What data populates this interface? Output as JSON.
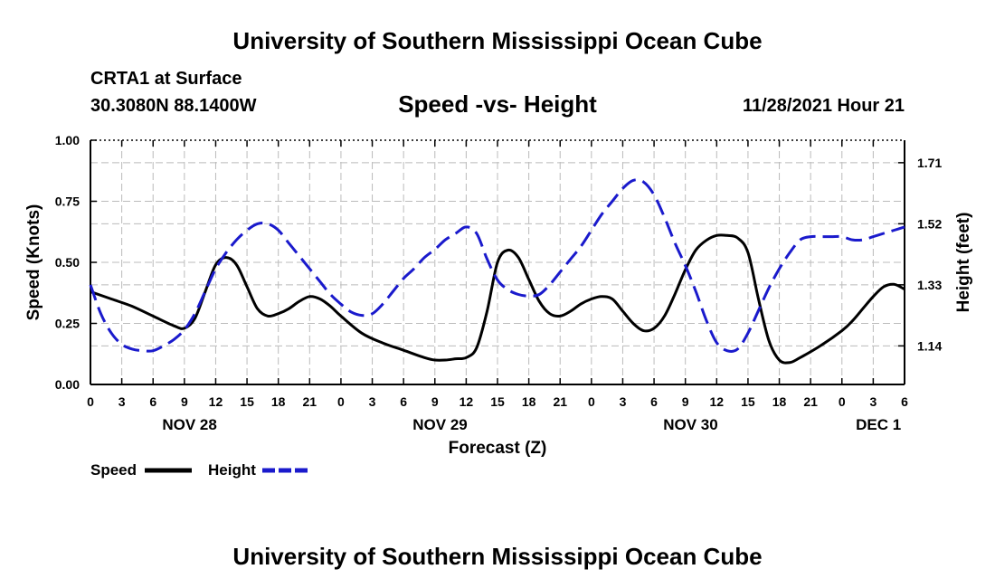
{
  "header": {
    "title": "University of Southern Mississippi Ocean Cube",
    "station": "CRTA1 at Surface",
    "coords": "30.3080N  88.1400W",
    "chart_title": "Speed -vs- Height",
    "datetime": "11/28/2021 Hour 21"
  },
  "footer": {
    "title": "University of Southern Mississippi Ocean Cube"
  },
  "colors": {
    "speed": "#000000",
    "height": "#1a1acc",
    "grid": "#bbbbbb"
  },
  "chart_data": {
    "type": "line",
    "title": "Speed -vs- Height",
    "xlabel": "Forecast (Z)",
    "ylabel": "Speed (Knots)",
    "y2label": "Height (feet)",
    "x_unit": "hours since NOV 28 00Z",
    "xlim": [
      0,
      78
    ],
    "ylim": [
      0,
      1
    ],
    "y2lim": [
      1.02,
      1.78
    ],
    "x_ticks": [
      0,
      3,
      6,
      9,
      12,
      15,
      18,
      21,
      24,
      27,
      30,
      33,
      36,
      39,
      42,
      45,
      48,
      51,
      54,
      57,
      60,
      63,
      66,
      69,
      72,
      75,
      78
    ],
    "x_tick_labels": [
      "0",
      "3",
      "6",
      "9",
      "12",
      "15",
      "18",
      "21",
      "0",
      "3",
      "6",
      "9",
      "12",
      "15",
      "18",
      "21",
      "0",
      "3",
      "6",
      "9",
      "12",
      "15",
      "18",
      "21",
      "0",
      "3",
      "6"
    ],
    "date_labels": [
      {
        "x": 9.5,
        "label": "NOV 28"
      },
      {
        "x": 33.5,
        "label": "NOV 29"
      },
      {
        "x": 57.5,
        "label": "NOV 30"
      },
      {
        "x": 75.5,
        "label": "DEC 1"
      }
    ],
    "y_ticks": [
      0,
      0.25,
      0.5,
      0.75,
      1.0
    ],
    "y_tick_labels": [
      "0.00",
      "0.25",
      "0.50",
      "0.75",
      "1.00"
    ],
    "y2_ticks": [
      1.14,
      1.33,
      1.52,
      1.71
    ],
    "y2_tick_labels": [
      "1.14",
      "1.33",
      "1.52",
      "1.71"
    ],
    "legend": [
      {
        "name": "Speed",
        "style": "solid"
      },
      {
        "name": "Height",
        "style": "dashed"
      }
    ],
    "series": [
      {
        "name": "Speed",
        "axis": "left",
        "x": [
          0,
          2,
          4,
          6,
          8,
          9,
          10,
          11,
          12,
          13,
          14,
          15,
          16,
          17,
          18,
          19,
          20,
          21,
          22,
          23,
          24,
          26,
          28,
          30,
          32,
          33,
          34,
          35,
          36,
          37,
          38,
          39,
          40,
          41,
          42,
          43,
          44,
          45,
          46,
          47,
          48,
          49,
          50,
          51,
          52,
          53,
          54,
          55,
          56,
          57,
          58,
          59,
          60,
          61,
          62,
          63,
          64,
          65,
          66,
          67,
          68,
          70,
          72,
          73,
          74,
          75,
          76,
          77,
          78
        ],
        "values": [
          0.38,
          0.35,
          0.32,
          0.28,
          0.24,
          0.23,
          0.27,
          0.38,
          0.49,
          0.52,
          0.49,
          0.4,
          0.31,
          0.28,
          0.29,
          0.31,
          0.34,
          0.36,
          0.35,
          0.32,
          0.28,
          0.21,
          0.17,
          0.14,
          0.11,
          0.1,
          0.1,
          0.105,
          0.11,
          0.15,
          0.3,
          0.5,
          0.55,
          0.52,
          0.43,
          0.34,
          0.29,
          0.28,
          0.3,
          0.33,
          0.35,
          0.36,
          0.35,
          0.3,
          0.25,
          0.22,
          0.23,
          0.28,
          0.37,
          0.47,
          0.55,
          0.59,
          0.61,
          0.61,
          0.6,
          0.54,
          0.35,
          0.18,
          0.1,
          0.09,
          0.11,
          0.16,
          0.22,
          0.26,
          0.31,
          0.36,
          0.4,
          0.41,
          0.39
        ]
      },
      {
        "name": "Height",
        "axis": "right",
        "x": [
          0,
          1,
          2,
          3,
          4,
          5,
          6,
          7,
          8,
          9,
          10,
          11,
          12,
          13,
          14,
          15,
          16,
          17,
          18,
          19,
          20,
          21,
          22,
          23,
          24,
          25,
          26,
          27,
          28,
          29,
          30,
          31,
          32,
          33,
          34,
          35,
          36,
          37,
          38,
          39,
          40,
          41,
          42,
          43,
          44,
          45,
          46,
          47,
          48,
          49,
          50,
          51,
          52,
          53,
          54,
          55,
          56,
          57,
          58,
          59,
          60,
          61,
          62,
          63,
          64,
          65,
          66,
          67,
          68,
          69,
          70,
          71,
          72,
          73,
          74,
          75,
          76,
          77,
          78
        ],
        "values": [
          1.33,
          1.24,
          1.18,
          1.145,
          1.13,
          1.125,
          1.125,
          1.14,
          1.16,
          1.19,
          1.24,
          1.31,
          1.38,
          1.43,
          1.47,
          1.5,
          1.52,
          1.52,
          1.5,
          1.46,
          1.42,
          1.38,
          1.34,
          1.3,
          1.27,
          1.245,
          1.235,
          1.24,
          1.27,
          1.31,
          1.35,
          1.38,
          1.415,
          1.44,
          1.47,
          1.49,
          1.51,
          1.49,
          1.41,
          1.345,
          1.315,
          1.3,
          1.295,
          1.3,
          1.33,
          1.37,
          1.41,
          1.45,
          1.5,
          1.55,
          1.59,
          1.63,
          1.655,
          1.65,
          1.61,
          1.54,
          1.46,
          1.39,
          1.31,
          1.22,
          1.15,
          1.125,
          1.13,
          1.18,
          1.25,
          1.32,
          1.38,
          1.43,
          1.47,
          1.48,
          1.48,
          1.48,
          1.48,
          1.47,
          1.47,
          1.48,
          1.49,
          1.5,
          1.51
        ]
      }
    ]
  }
}
